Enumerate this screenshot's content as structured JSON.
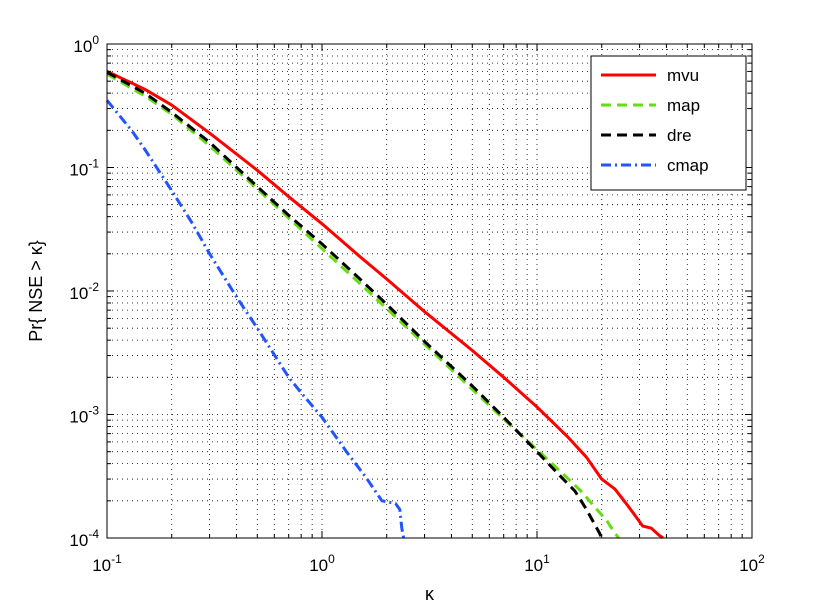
{
  "chart_data": {
    "type": "line",
    "title": "",
    "xlabel": "κ",
    "ylabel": "Pr{ NSE > κ}",
    "xscale": "log",
    "yscale": "log",
    "xlim": [
      0.1,
      100
    ],
    "ylim": [
      0.0001,
      1
    ],
    "grid": "dotted major and minor",
    "legend_position": "top-right",
    "x_ticks": [
      {
        "base": "10",
        "exp": "-1"
      },
      {
        "base": "10",
        "exp": "0"
      },
      {
        "base": "10",
        "exp": "1"
      },
      {
        "base": "10",
        "exp": "2"
      }
    ],
    "y_ticks": [
      {
        "base": "10",
        "exp": "-4"
      },
      {
        "base": "10",
        "exp": "-3"
      },
      {
        "base": "10",
        "exp": "-2"
      },
      {
        "base": "10",
        "exp": "-1"
      },
      {
        "base": "10",
        "exp": "0"
      }
    ],
    "series": [
      {
        "name": "mvu",
        "color": "#ff0000",
        "dash": "solid",
        "x": [
          0.1,
          0.15,
          0.2,
          0.3,
          0.5,
          0.7,
          1.0,
          1.5,
          2.0,
          3.0,
          5.0,
          7.0,
          10.0,
          14.0,
          17.0,
          20.0,
          23.0,
          26.0,
          28.0,
          31.0,
          34.0,
          37.0,
          38.0,
          38.5
        ],
        "y": [
          0.6,
          0.43,
          0.32,
          0.19,
          0.095,
          0.058,
          0.035,
          0.019,
          0.0125,
          0.0068,
          0.0033,
          0.002,
          0.00115,
          0.00065,
          0.00045,
          0.0003,
          0.00025,
          0.00019,
          0.00016,
          0.000125,
          0.00012,
          0.000105,
          0.000102,
          0.0001
        ]
      },
      {
        "name": "map",
        "color": "#66dd11",
        "dash": "dashed",
        "x": [
          0.1,
          0.15,
          0.2,
          0.3,
          0.5,
          0.7,
          1.0,
          1.5,
          2.0,
          3.0,
          5.0,
          7.0,
          10.0,
          13.0,
          16.0,
          19.0,
          21.0,
          23.0,
          24.0
        ],
        "y": [
          0.57,
          0.38,
          0.27,
          0.15,
          0.067,
          0.039,
          0.022,
          0.0115,
          0.0072,
          0.0037,
          0.0016,
          0.00092,
          0.00052,
          0.00034,
          0.00024,
          0.00017,
          0.00014,
          0.00011,
          0.0001
        ]
      },
      {
        "name": "dre",
        "color": "#000000",
        "dash": "dashed",
        "x": [
          0.1,
          0.15,
          0.2,
          0.3,
          0.5,
          0.7,
          1.0,
          1.5,
          2.0,
          3.0,
          5.0,
          7.0,
          10.0,
          13.0,
          15.0,
          17.0,
          18.5,
          19.5,
          20.0
        ],
        "y": [
          0.59,
          0.4,
          0.28,
          0.16,
          0.07,
          0.041,
          0.024,
          0.0125,
          0.0078,
          0.0039,
          0.0017,
          0.00095,
          0.0005,
          0.00031,
          0.00024,
          0.00017,
          0.00013,
          0.00011,
          0.0001
        ]
      },
      {
        "name": "cmap",
        "color": "#2255ff",
        "dash": "dashdot",
        "x": [
          0.1,
          0.13,
          0.15,
          0.2,
          0.25,
          0.3,
          0.4,
          0.5,
          0.7,
          0.8,
          1.0,
          1.3,
          1.6,
          1.9,
          2.2,
          2.3,
          2.35,
          2.4
        ],
        "y": [
          0.35,
          0.2,
          0.14,
          0.065,
          0.035,
          0.02,
          0.009,
          0.005,
          0.002,
          0.0015,
          0.00095,
          0.0005,
          0.00031,
          0.0002,
          0.00019,
          0.00017,
          0.00012,
          0.0001
        ]
      }
    ]
  }
}
